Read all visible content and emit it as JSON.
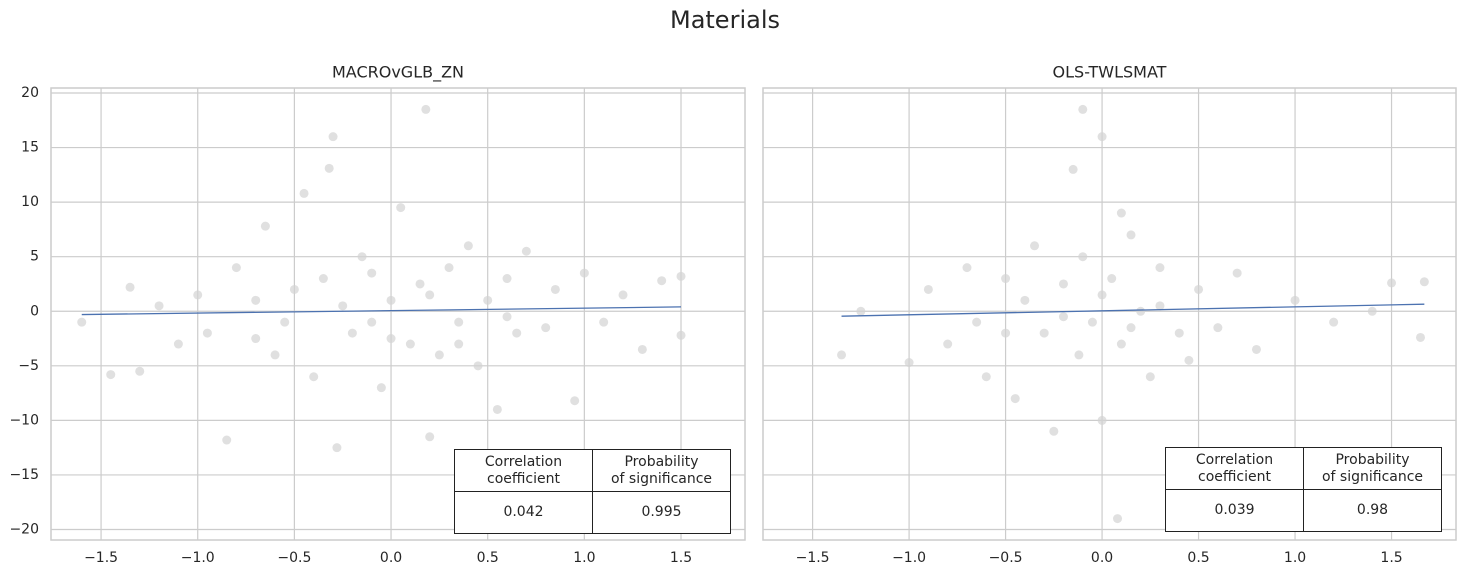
{
  "title": "Materials",
  "chart_data": [
    {
      "type": "scatter",
      "title": "MACROvGLB_ZN",
      "color": "#d3d3d3",
      "grid": true,
      "x": [
        -1.6,
        -1.45,
        -1.35,
        -1.3,
        -1.2,
        -1.1,
        -1.0,
        -0.95,
        -0.85,
        -0.8,
        -0.7,
        -0.65,
        -0.6,
        -0.5,
        -0.45,
        -0.4,
        -0.35,
        -0.3,
        -0.32,
        -0.28,
        -0.2,
        -0.15,
        -0.1,
        -0.05,
        0,
        0.05,
        0.1,
        0.15,
        0.18,
        0.2,
        0.25,
        0.3,
        0.35,
        0.4,
        0.45,
        0.5,
        0.55,
        0.6,
        0.65,
        0.7,
        0.8,
        0.85,
        0.95,
        1.0,
        1.1,
        1.2,
        1.3,
        1.4,
        1.5,
        1.5,
        -0.55,
        -0.25,
        0.0,
        0.2,
        -0.1,
        0.35,
        -0.7,
        0.6
      ],
      "values": [
        -1,
        -5.8,
        2.2,
        -5.5,
        0.5,
        -3,
        1.5,
        -2,
        -11.8,
        4,
        -2.5,
        7.8,
        -4,
        2,
        10.8,
        -6,
        3,
        16,
        13.1,
        -12.5,
        -2,
        5,
        -1,
        -7,
        1,
        9.5,
        -3,
        2.5,
        18.5,
        -11.5,
        -4,
        4,
        -1,
        6,
        -5,
        1,
        -9,
        3,
        -2,
        5.5,
        -1.5,
        2,
        -8.2,
        3.5,
        -1,
        1.5,
        -3.5,
        2.8,
        3.2,
        -2.2,
        -1,
        0.5,
        -2.5,
        1.5,
        3.5,
        -3,
        1,
        -0.5
      ],
      "fit": {
        "color": "#4c72b0",
        "x": [
          -1.6,
          1.5
        ],
        "values": [
          -0.3,
          0.4
        ]
      },
      "xlim": [
        -1.759,
        1.831
      ],
      "ylim": [
        -20.96,
        20.46
      ],
      "xticks": [
        {
          "value": -1.5,
          "label": "−1.5"
        },
        {
          "value": -1,
          "label": "−1.0"
        },
        {
          "value": -0.5,
          "label": "−0.5"
        },
        {
          "value": 0,
          "label": "0.0"
        },
        0.5,
        {
          "value": 1,
          "label": "1.0"
        },
        1.5
      ],
      "yticks": [
        {
          "value": -20,
          "label": "−20"
        },
        {
          "value": -15,
          "label": "−15"
        },
        {
          "value": -10,
          "label": "−10"
        },
        {
          "value": -5,
          "label": "−5"
        },
        0,
        5,
        10,
        15,
        20
      ],
      "table": {
        "header": [
          "Correlation\ncoefficient",
          "Probability\nof significance"
        ],
        "row": [
          "0.042",
          "0.995"
        ]
      }
    },
    {
      "type": "scatter",
      "title": "OLS-TWLSMAT",
      "color": "#d3d3d3",
      "grid": true,
      "x": [
        -1.35,
        -1.25,
        -1.0,
        -0.9,
        -0.8,
        -0.7,
        -0.65,
        -0.6,
        -0.5,
        -0.45,
        -0.4,
        -0.35,
        -0.3,
        -0.25,
        -0.2,
        -0.15,
        -0.12,
        -0.1,
        -0.05,
        -0.1,
        0,
        0,
        0.05,
        0.08,
        0.1,
        0.15,
        0.2,
        0.25,
        0.3,
        0.4,
        0.5,
        0.6,
        0.7,
        0.8,
        1.0,
        1.2,
        1.4,
        1.5,
        1.65,
        1.67,
        0.15,
        -0.2,
        0,
        0.3,
        -0.5,
        0.45,
        0.1
      ],
      "values": [
        -4,
        0,
        -4.7,
        2,
        -3,
        4,
        -1,
        -6,
        3,
        -8,
        1,
        6,
        -2,
        -11,
        2.5,
        13,
        -4,
        5,
        -1,
        18.5,
        16,
        -10,
        3,
        -19,
        -3,
        7,
        0,
        -6,
        4,
        -2,
        2,
        -1.5,
        3.5,
        -3.5,
        1,
        -1,
        0,
        2.6,
        -2.4,
        2.7,
        -1.5,
        -0.5,
        1.5,
        0.5,
        -2,
        -4.5,
        9
      ],
      "fit": {
        "color": "#4c72b0",
        "x": [
          -1.35,
          1.67
        ],
        "values": [
          -0.45,
          0.65
        ]
      },
      "xlim": [
        -1.757,
        1.834
      ],
      "ylim": [
        -20.96,
        20.46
      ],
      "xticks": [
        {
          "value": -1.5,
          "label": "−1.5"
        },
        {
          "value": -1,
          "label": "−1.0"
        },
        {
          "value": -0.5,
          "label": "−0.5"
        },
        {
          "value": 0,
          "label": "0.0"
        },
        0.5,
        {
          "value": 1,
          "label": "1.0"
        },
        1.5
      ],
      "yticks": [
        {
          "value": -20,
          "label": "−20"
        },
        {
          "value": -15,
          "label": "−15"
        },
        {
          "value": -10,
          "label": "−10"
        },
        {
          "value": -5,
          "label": "−5"
        },
        0,
        5,
        10,
        15,
        20
      ],
      "table": {
        "header": [
          "Correlation\ncoefficient",
          "Probability\nof significance"
        ],
        "row": [
          "0.039",
          "0.98"
        ]
      }
    }
  ]
}
